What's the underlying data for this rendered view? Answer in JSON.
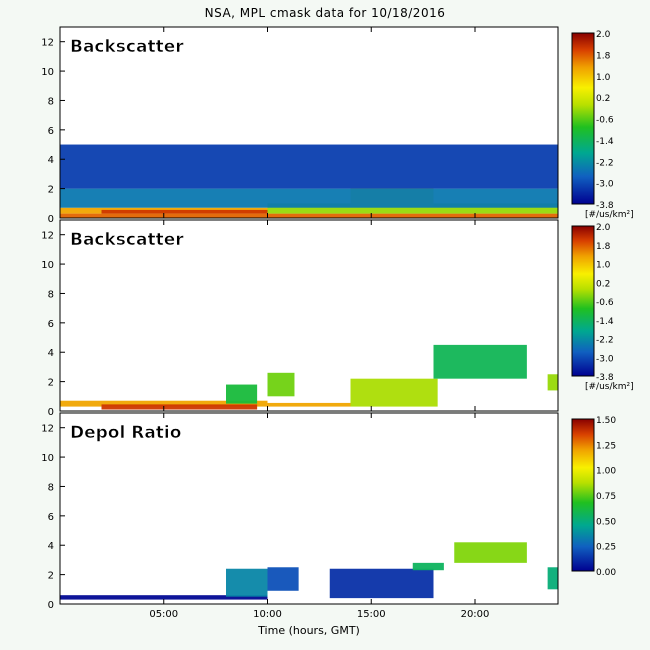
{
  "figure": {
    "title": "NSA, MPL cmask data for 10/18/2016",
    "xlabel": "Time (hours, GMT)"
  },
  "chart_data": [
    {
      "type": "heatmap",
      "panel_label": "Backscatter",
      "xlim": [
        0,
        24
      ],
      "ylim": [
        0,
        13
      ],
      "xticks": [
        "05:00",
        "10:00",
        "15:00",
        "20:00"
      ],
      "xtick_values": [
        5,
        10,
        15,
        20
      ],
      "yticks": [
        0,
        2,
        4,
        6,
        8,
        10,
        12
      ],
      "colorbar": {
        "min": -3.8,
        "max": 2.0,
        "ticks": [
          "2.0",
          "1.8",
          "1.0",
          "0.2",
          "-0.6",
          "-1.4",
          "-2.2",
          "-3.0",
          "-3.8"
        ],
        "units": "[#/us/km²]"
      },
      "grid": false,
      "layers": [
        {
          "x": [
            0,
            24
          ],
          "y": [
            0,
            0.3
          ],
          "value": 1.2
        },
        {
          "x": [
            0,
            10
          ],
          "y": [
            0.3,
            0.7
          ],
          "value": 0.8
        },
        {
          "x": [
            2,
            10
          ],
          "y": [
            0.3,
            0.55
          ],
          "value": 1.5
        },
        {
          "x": [
            10,
            24
          ],
          "y": [
            0.3,
            1.0
          ],
          "value": -0.6
        },
        {
          "x": [
            14,
            18
          ],
          "y": [
            0.8,
            2.0
          ],
          "value": -0.3
        },
        {
          "x": [
            0,
            24
          ],
          "y": [
            0.7,
            2.0
          ],
          "value": -2.6
        },
        {
          "x": [
            0,
            24
          ],
          "y": [
            2.0,
            5.0
          ],
          "value": -3.2
        }
      ]
    },
    {
      "type": "heatmap",
      "panel_label": "Backscatter",
      "xlim": [
        0,
        24
      ],
      "ylim": [
        0,
        13
      ],
      "xticks": [
        "05:00",
        "10:00",
        "15:00",
        "20:00"
      ],
      "xtick_values": [
        5,
        10,
        15,
        20
      ],
      "yticks": [
        0,
        2,
        4,
        6,
        8,
        10,
        12
      ],
      "colorbar": {
        "min": -3.8,
        "max": 2.0,
        "ticks": [
          "2.0",
          "1.8",
          "1.0",
          "0.2",
          "-0.6",
          "-1.4",
          "-2.2",
          "-3.0",
          "-3.8"
        ],
        "units": "[#/us/km²]"
      },
      "grid": false,
      "layers": [
        {
          "x": [
            0,
            10
          ],
          "y": [
            0.3,
            0.7
          ],
          "value": 0.8
        },
        {
          "x": [
            2,
            9.5
          ],
          "y": [
            0.1,
            0.45
          ],
          "value": 1.5
        },
        {
          "x": [
            10,
            14
          ],
          "y": [
            0.3,
            0.55
          ],
          "value": 0.8
        },
        {
          "x": [
            8,
            9.5
          ],
          "y": [
            0.5,
            1.8
          ],
          "value": -1.4
        },
        {
          "x": [
            10,
            11.3
          ],
          "y": [
            1.0,
            2.6
          ],
          "value": -0.8
        },
        {
          "x": [
            14,
            18.2
          ],
          "y": [
            0.3,
            2.2
          ],
          "value": -0.5
        },
        {
          "x": [
            18,
            22.5
          ],
          "y": [
            2.2,
            4.5
          ],
          "value": -1.6
        },
        {
          "x": [
            23.5,
            24
          ],
          "y": [
            1.4,
            2.5
          ],
          "value": -0.6
        }
      ]
    },
    {
      "type": "heatmap",
      "panel_label": "Depol Ratio",
      "xlim": [
        0,
        24
      ],
      "ylim": [
        0,
        13
      ],
      "xticks": [
        "05:00",
        "10:00",
        "15:00",
        "20:00"
      ],
      "xtick_values": [
        5,
        10,
        15,
        20
      ],
      "yticks": [
        0,
        2,
        4,
        6,
        8,
        10,
        12
      ],
      "colorbar": {
        "min": 0.0,
        "max": 1.5,
        "ticks": [
          "1.50",
          "1.25",
          "1.00",
          "0.75",
          "0.50",
          "0.25",
          "0.00"
        ],
        "units": ""
      },
      "grid": false,
      "layers": [
        {
          "x": [
            0,
            10
          ],
          "y": [
            0.3,
            0.6
          ],
          "value": 0.02
        },
        {
          "x": [
            8,
            10
          ],
          "y": [
            0.5,
            2.4
          ],
          "value": 0.35
        },
        {
          "x": [
            10,
            11.5
          ],
          "y": [
            0.9,
            2.5
          ],
          "value": 0.2
        },
        {
          "x": [
            13,
            18
          ],
          "y": [
            0.4,
            2.4
          ],
          "value": 0.12
        },
        {
          "x": [
            17,
            18.5
          ],
          "y": [
            2.3,
            2.8
          ],
          "value": 0.55
        },
        {
          "x": [
            19,
            22.5
          ],
          "y": [
            2.8,
            4.2
          ],
          "value": 0.8
        },
        {
          "x": [
            23.5,
            24
          ],
          "y": [
            1.0,
            2.5
          ],
          "value": 0.5
        }
      ]
    }
  ]
}
